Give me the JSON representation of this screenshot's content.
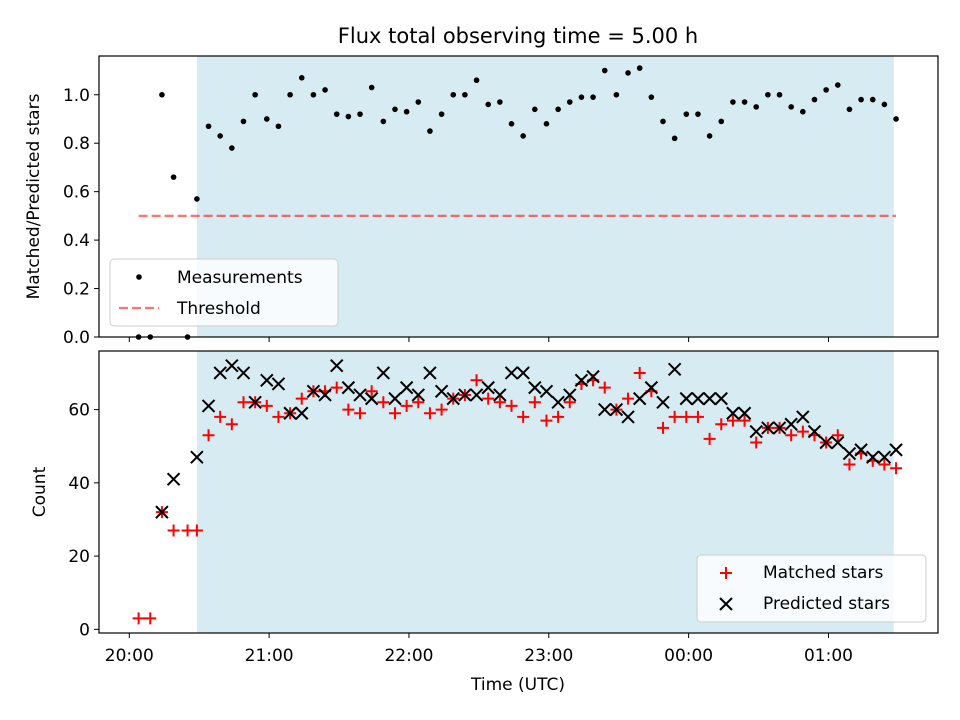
{
  "title": "Flux total observing time = 5.00 h",
  "colors": {
    "shade": "#add8e6",
    "threshold": "#ff0000",
    "matched": "#ff0000",
    "predicted": "#000000",
    "measurement": "#000000"
  },
  "chart_data": [
    {
      "type": "scatter",
      "panel": "top",
      "title": "Flux total observing time = 5.00 h",
      "xlabel": "",
      "ylabel": "Matched/Predicted stars",
      "xlim": [
        "19:47",
        "01:47"
      ],
      "ylim": [
        0,
        1.16
      ],
      "yticks": [
        0.0,
        0.2,
        0.4,
        0.6,
        0.8,
        1.0
      ],
      "yticklabels": [
        "0.0",
        "0.2",
        "0.4",
        "0.6",
        "0.8",
        "1.0"
      ],
      "shaded_region": [
        "20:29",
        "01:28"
      ],
      "grid": false,
      "legend": {
        "placement": "lower-left",
        "entries": [
          "Measurements",
          "Threshold"
        ]
      },
      "series": [
        {
          "name": "Measurements",
          "marker": "dot",
          "points": [
            [
              "20:04",
              0.0
            ],
            [
              "20:09",
              0.0
            ],
            [
              "20:14",
              1.0
            ],
            [
              "20:19",
              0.66
            ],
            [
              "20:25",
              0.0
            ],
            [
              "20:29",
              0.57
            ],
            [
              "20:34",
              0.87
            ],
            [
              "20:39",
              0.83
            ],
            [
              "20:44",
              0.78
            ],
            [
              "20:49",
              0.89
            ],
            [
              "20:54",
              1.0
            ],
            [
              "20:59",
              0.9
            ],
            [
              "21:04",
              0.87
            ],
            [
              "21:09",
              1.0
            ],
            [
              "21:14",
              1.07
            ],
            [
              "21:19",
              1.0
            ],
            [
              "21:24",
              1.02
            ],
            [
              "21:29",
              0.92
            ],
            [
              "21:34",
              0.91
            ],
            [
              "21:39",
              0.92
            ],
            [
              "21:44",
              1.03
            ],
            [
              "21:49",
              0.89
            ],
            [
              "21:54",
              0.94
            ],
            [
              "21:59",
              0.93
            ],
            [
              "22:04",
              0.97
            ],
            [
              "22:09",
              0.85
            ],
            [
              "22:14",
              0.92
            ],
            [
              "22:19",
              1.0
            ],
            [
              "22:24",
              1.0
            ],
            [
              "22:29",
              1.06
            ],
            [
              "22:34",
              0.96
            ],
            [
              "22:39",
              0.97
            ],
            [
              "22:44",
              0.88
            ],
            [
              "22:49",
              0.83
            ],
            [
              "22:54",
              0.94
            ],
            [
              "22:59",
              0.88
            ],
            [
              "23:04",
              0.94
            ],
            [
              "23:09",
              0.97
            ],
            [
              "23:14",
              0.99
            ],
            [
              "23:19",
              0.99
            ],
            [
              "23:24",
              1.1
            ],
            [
              "23:29",
              1.0
            ],
            [
              "23:34",
              1.09
            ],
            [
              "23:39",
              1.11
            ],
            [
              "23:44",
              0.99
            ],
            [
              "23:49",
              0.89
            ],
            [
              "23:54",
              0.82
            ],
            [
              "23:59",
              0.92
            ],
            [
              "00:04",
              0.92
            ],
            [
              "00:09",
              0.83
            ],
            [
              "00:14",
              0.89
            ],
            [
              "00:19",
              0.97
            ],
            [
              "00:24",
              0.97
            ],
            [
              "00:29",
              0.95
            ],
            [
              "00:34",
              1.0
            ],
            [
              "00:39",
              1.0
            ],
            [
              "00:44",
              0.95
            ],
            [
              "00:49",
              0.93
            ],
            [
              "00:54",
              0.98
            ],
            [
              "00:59",
              1.02
            ],
            [
              "01:04",
              1.04
            ],
            [
              "01:09",
              0.94
            ],
            [
              "01:14",
              0.98
            ],
            [
              "01:19",
              0.98
            ],
            [
              "01:24",
              0.96
            ],
            [
              "01:29",
              0.9
            ]
          ]
        },
        {
          "name": "Threshold",
          "marker": "dashed-line",
          "points": [
            [
              "20:04",
              0.5
            ],
            [
              "01:29",
              0.5
            ]
          ]
        }
      ]
    },
    {
      "type": "scatter",
      "panel": "bottom",
      "xlabel": "Time (UTC)",
      "ylabel": "Count",
      "xlim": [
        "19:47",
        "01:47"
      ],
      "ylim": [
        -1,
        76
      ],
      "xticks": [
        "20:00",
        "21:00",
        "22:00",
        "23:00",
        "00:00",
        "01:00"
      ],
      "yticks": [
        0,
        20,
        40,
        60
      ],
      "yticklabels": [
        "0",
        "20",
        "40",
        "60"
      ],
      "shaded_region": [
        "20:29",
        "01:28"
      ],
      "grid": false,
      "legend": {
        "placement": "lower-right",
        "entries": [
          "Matched stars",
          "Predicted stars"
        ]
      },
      "series": [
        {
          "name": "Matched stars",
          "marker": "plus",
          "points": [
            [
              "20:04",
              3
            ],
            [
              "20:09",
              3
            ],
            [
              "20:14",
              32
            ],
            [
              "20:19",
              27
            ],
            [
              "20:25",
              27
            ],
            [
              "20:29",
              27
            ],
            [
              "20:34",
              53
            ],
            [
              "20:39",
              58
            ],
            [
              "20:44",
              56
            ],
            [
              "20:49",
              62
            ],
            [
              "20:54",
              62
            ],
            [
              "20:59",
              61
            ],
            [
              "21:04",
              58
            ],
            [
              "21:09",
              59
            ],
            [
              "21:14",
              63
            ],
            [
              "21:19",
              65
            ],
            [
              "21:24",
              65
            ],
            [
              "21:29",
              66
            ],
            [
              "21:34",
              60
            ],
            [
              "21:39",
              59
            ],
            [
              "21:44",
              65
            ],
            [
              "21:49",
              62
            ],
            [
              "21:54",
              59
            ],
            [
              "21:59",
              61
            ],
            [
              "22:04",
              62
            ],
            [
              "22:09",
              59
            ],
            [
              "22:14",
              60
            ],
            [
              "22:19",
              63
            ],
            [
              "22:24",
              64
            ],
            [
              "22:29",
              68
            ],
            [
              "22:34",
              63
            ],
            [
              "22:39",
              62
            ],
            [
              "22:44",
              61
            ],
            [
              "22:49",
              58
            ],
            [
              "22:54",
              62
            ],
            [
              "22:59",
              57
            ],
            [
              "23:04",
              58
            ],
            [
              "23:09",
              62
            ],
            [
              "23:14",
              67
            ],
            [
              "23:19",
              68
            ],
            [
              "23:24",
              66
            ],
            [
              "23:29",
              60
            ],
            [
              "23:34",
              63
            ],
            [
              "23:39",
              70
            ],
            [
              "23:44",
              65
            ],
            [
              "23:49",
              55
            ],
            [
              "23:54",
              58
            ],
            [
              "23:59",
              58
            ],
            [
              "00:04",
              58
            ],
            [
              "00:09",
              52
            ],
            [
              "00:14",
              56
            ],
            [
              "00:19",
              57
            ],
            [
              "00:24",
              57
            ],
            [
              "00:29",
              51
            ],
            [
              "00:34",
              55
            ],
            [
              "00:39",
              55
            ],
            [
              "00:44",
              53
            ],
            [
              "00:49",
              54
            ],
            [
              "00:54",
              53
            ],
            [
              "00:59",
              51
            ],
            [
              "01:04",
              53
            ],
            [
              "01:09",
              45
            ],
            [
              "01:14",
              48
            ],
            [
              "01:19",
              46
            ],
            [
              "01:24",
              45
            ],
            [
              "01:29",
              44
            ]
          ]
        },
        {
          "name": "Predicted stars",
          "marker": "x",
          "points": [
            [
              "20:14",
              32
            ],
            [
              "20:19",
              41
            ],
            [
              "20:29",
              47
            ],
            [
              "20:34",
              61
            ],
            [
              "20:39",
              70
            ],
            [
              "20:44",
              72
            ],
            [
              "20:49",
              70
            ],
            [
              "20:54",
              62
            ],
            [
              "20:59",
              68
            ],
            [
              "21:04",
              67
            ],
            [
              "21:09",
              59
            ],
            [
              "21:14",
              59
            ],
            [
              "21:19",
              65
            ],
            [
              "21:24",
              64
            ],
            [
              "21:29",
              72
            ],
            [
              "21:34",
              66
            ],
            [
              "21:39",
              64
            ],
            [
              "21:44",
              63
            ],
            [
              "21:49",
              70
            ],
            [
              "21:54",
              63
            ],
            [
              "21:59",
              66
            ],
            [
              "22:04",
              64
            ],
            [
              "22:09",
              70
            ],
            [
              "22:14",
              65
            ],
            [
              "22:19",
              63
            ],
            [
              "22:24",
              64
            ],
            [
              "22:29",
              64
            ],
            [
              "22:34",
              66
            ],
            [
              "22:39",
              64
            ],
            [
              "22:44",
              70
            ],
            [
              "22:49",
              70
            ],
            [
              "22:54",
              66
            ],
            [
              "22:59",
              65
            ],
            [
              "23:04",
              62
            ],
            [
              "23:09",
              64
            ],
            [
              "23:14",
              68
            ],
            [
              "23:19",
              69
            ],
            [
              "23:24",
              60
            ],
            [
              "23:29",
              60
            ],
            [
              "23:34",
              58
            ],
            [
              "23:39",
              63
            ],
            [
              "23:44",
              66
            ],
            [
              "23:49",
              62
            ],
            [
              "23:54",
              71
            ],
            [
              "23:59",
              63
            ],
            [
              "00:04",
              63
            ],
            [
              "00:09",
              63
            ],
            [
              "00:14",
              63
            ],
            [
              "00:19",
              59
            ],
            [
              "00:24",
              59
            ],
            [
              "00:29",
              54
            ],
            [
              "00:34",
              55
            ],
            [
              "00:39",
              55
            ],
            [
              "00:44",
              56
            ],
            [
              "00:49",
              58
            ],
            [
              "00:54",
              54
            ],
            [
              "00:59",
              51
            ],
            [
              "01:04",
              51
            ],
            [
              "01:09",
              48
            ],
            [
              "01:14",
              49
            ],
            [
              "01:19",
              47
            ],
            [
              "01:24",
              47
            ],
            [
              "01:29",
              49
            ]
          ]
        }
      ]
    }
  ]
}
